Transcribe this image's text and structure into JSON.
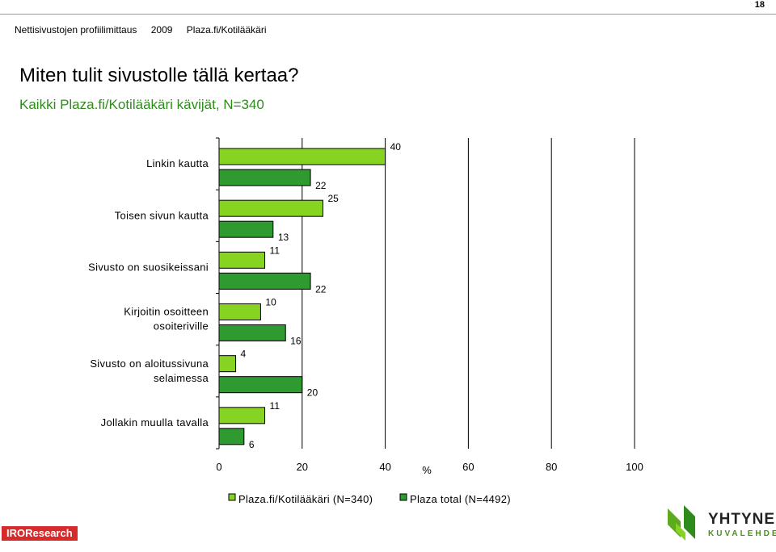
{
  "page": {
    "number": "18",
    "header_items": [
      "Nettisivustojen profiilimittaus",
      "2009",
      "Plaza.fi/Kotilääkäri"
    ],
    "title": "Miten tulit sivustolle tällä kertaa?",
    "subtitle": "Kaikki Plaza.fi/Kotilääkäri kävijät, N=340"
  },
  "chart_data": {
    "type": "bar",
    "orientation": "horizontal",
    "categories": [
      [
        "Linkin kautta"
      ],
      [
        "Toisen sivun kautta"
      ],
      [
        "Sivusto on suosikeissani"
      ],
      [
        "Kirjoitin osoitteen",
        "osoiteriville"
      ],
      [
        "Sivusto on aloitussivuna",
        "selaimessa"
      ],
      [
        "Jollakin muulla tavalla"
      ]
    ],
    "series": [
      {
        "name": "Plaza.fi/Kotilääkäri (N=340)",
        "color": "#86d322",
        "values": [
          40,
          25,
          11,
          10,
          4,
          11
        ]
      },
      {
        "name": "Plaza total (N=4492)",
        "color": "#2f9a2f",
        "values": [
          22,
          13,
          22,
          16,
          20,
          6
        ]
      }
    ],
    "xlim": [
      0,
      100
    ],
    "xticks": [
      0,
      20,
      40,
      60,
      80,
      100
    ],
    "xlabel": "%",
    "grid": true,
    "legend": "bottom"
  },
  "logos": {
    "iro": "IROResearch",
    "yhtyneet": "YHTYNEET",
    "kuvalehdet": "KUVALEHDET"
  },
  "colors": {
    "subtitle": "#2f8b1c",
    "iro_red": "#d72a2a",
    "grid": "#000000"
  }
}
